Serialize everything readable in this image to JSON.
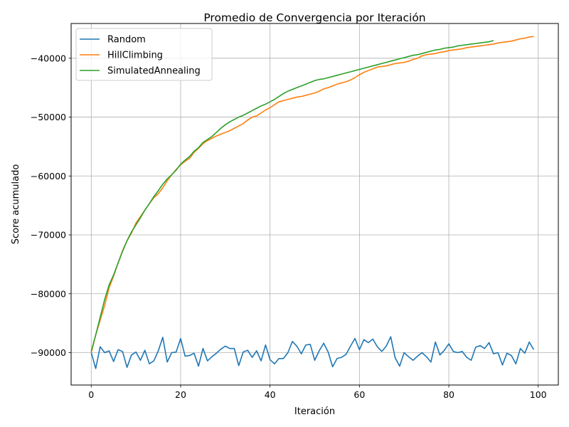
{
  "chart_data": {
    "type": "line",
    "title": "Promedio de Convergencia por Iteración",
    "xlabel": "Iteración",
    "ylabel": "Score acumulado",
    "xlim": [
      -4.5,
      104.5
    ],
    "ylim": [
      -95500,
      -34100
    ],
    "xticks": [
      0,
      20,
      40,
      60,
      80,
      100
    ],
    "xtick_labels": [
      "0",
      "20",
      "40",
      "60",
      "80",
      "100"
    ],
    "yticks": [
      -90000,
      -80000,
      -70000,
      -60000,
      -50000,
      -40000
    ],
    "ytick_labels": [
      "−90000",
      "−80000",
      "−70000",
      "−60000",
      "−50000",
      "−40000"
    ],
    "grid": true,
    "legend_position": "upper-left",
    "series": [
      {
        "name": "Random",
        "color": "#1f77b4",
        "values": [
          -90000,
          -92700,
          -89000,
          -90000,
          -89700,
          -91500,
          -89500,
          -89800,
          -92500,
          -90400,
          -89900,
          -91300,
          -89600,
          -91900,
          -91400,
          -89700,
          -87400,
          -91600,
          -90000,
          -89900,
          -87600,
          -90600,
          -90500,
          -90100,
          -92300,
          -89300,
          -91400,
          -90700,
          -90100,
          -89400,
          -88900,
          -89300,
          -89300,
          -92200,
          -89900,
          -89600,
          -90800,
          -89700,
          -91400,
          -88700,
          -91200,
          -91900,
          -91000,
          -91000,
          -90000,
          -88100,
          -88900,
          -90200,
          -88700,
          -88600,
          -91300,
          -89700,
          -88400,
          -89900,
          -92400,
          -91000,
          -90800,
          -90300,
          -88900,
          -87600,
          -89500,
          -87800,
          -88300,
          -87700,
          -89000,
          -89800,
          -88900,
          -87300,
          -90900,
          -92300,
          -90000,
          -90700,
          -91300,
          -90600,
          -90000,
          -90700,
          -91600,
          -88200,
          -90400,
          -89600,
          -88500,
          -89800,
          -90000,
          -89800,
          -90800,
          -91300,
          -89100,
          -88800,
          -89300,
          -88300,
          -90200,
          -90000,
          -92100,
          -90100,
          -90500,
          -91900,
          -89300,
          -90100,
          -88200,
          -89500
        ]
      },
      {
        "name": "HillClimbing",
        "color": "#ff7f0e",
        "values": [
          -90000,
          -87000,
          -84500,
          -82000,
          -79000,
          -77000,
          -74800,
          -72700,
          -71000,
          -69700,
          -68000,
          -66900,
          -65800,
          -64700,
          -63700,
          -63000,
          -62000,
          -60800,
          -59800,
          -58900,
          -58100,
          -57500,
          -57000,
          -56000,
          -55300,
          -54500,
          -54000,
          -53600,
          -53200,
          -52900,
          -52600,
          -52300,
          -51900,
          -51500,
          -51100,
          -50500,
          -50000,
          -49800,
          -49300,
          -48800,
          -48400,
          -47900,
          -47400,
          -47200,
          -47000,
          -46800,
          -46600,
          -46500,
          -46300,
          -46100,
          -45900,
          -45600,
          -45200,
          -45000,
          -44700,
          -44400,
          -44200,
          -44000,
          -43700,
          -43300,
          -42800,
          -42400,
          -42100,
          -41800,
          -41500,
          -41400,
          -41300,
          -41100,
          -40900,
          -40800,
          -40700,
          -40500,
          -40200,
          -40000,
          -39600,
          -39400,
          -39300,
          -39200,
          -39000,
          -38900,
          -38700,
          -38600,
          -38500,
          -38400,
          -38200,
          -38100,
          -38000,
          -37900,
          -37800,
          -37700,
          -37600,
          -37400,
          -37300,
          -37200,
          -37100,
          -36900,
          -36700,
          -36600,
          -36400,
          -36300
        ]
      },
      {
        "name": "SimulatedAnnealing",
        "color": "#2ca02c",
        "values": [
          -89800,
          -87000,
          -84000,
          -81000,
          -78500,
          -76800,
          -74800,
          -72800,
          -71000,
          -69500,
          -68300,
          -67100,
          -65800,
          -64700,
          -63500,
          -62500,
          -61400,
          -60500,
          -59800,
          -59000,
          -58000,
          -57300,
          -56700,
          -55800,
          -55200,
          -54300,
          -53800,
          -53300,
          -52600,
          -51900,
          -51300,
          -50800,
          -50400,
          -50000,
          -49700,
          -49300,
          -48900,
          -48500,
          -48100,
          -47800,
          -47400,
          -47000,
          -46500,
          -46000,
          -45600,
          -45300,
          -45000,
          -44700,
          -44400,
          -44100,
          -43800,
          -43600,
          -43500,
          -43300,
          -43100,
          -42900,
          -42700,
          -42500,
          -42300,
          -42100,
          -41900,
          -41700,
          -41500,
          -41300,
          -41100,
          -40900,
          -40700,
          -40500,
          -40300,
          -40100,
          -39900,
          -39700,
          -39500,
          -39400,
          -39200,
          -39000,
          -38800,
          -38600,
          -38500,
          -38300,
          -38200,
          -38100,
          -37900,
          -37800,
          -37700,
          -37600,
          -37500,
          -37400,
          -37300,
          -37200,
          -37000
        ]
      }
    ]
  }
}
